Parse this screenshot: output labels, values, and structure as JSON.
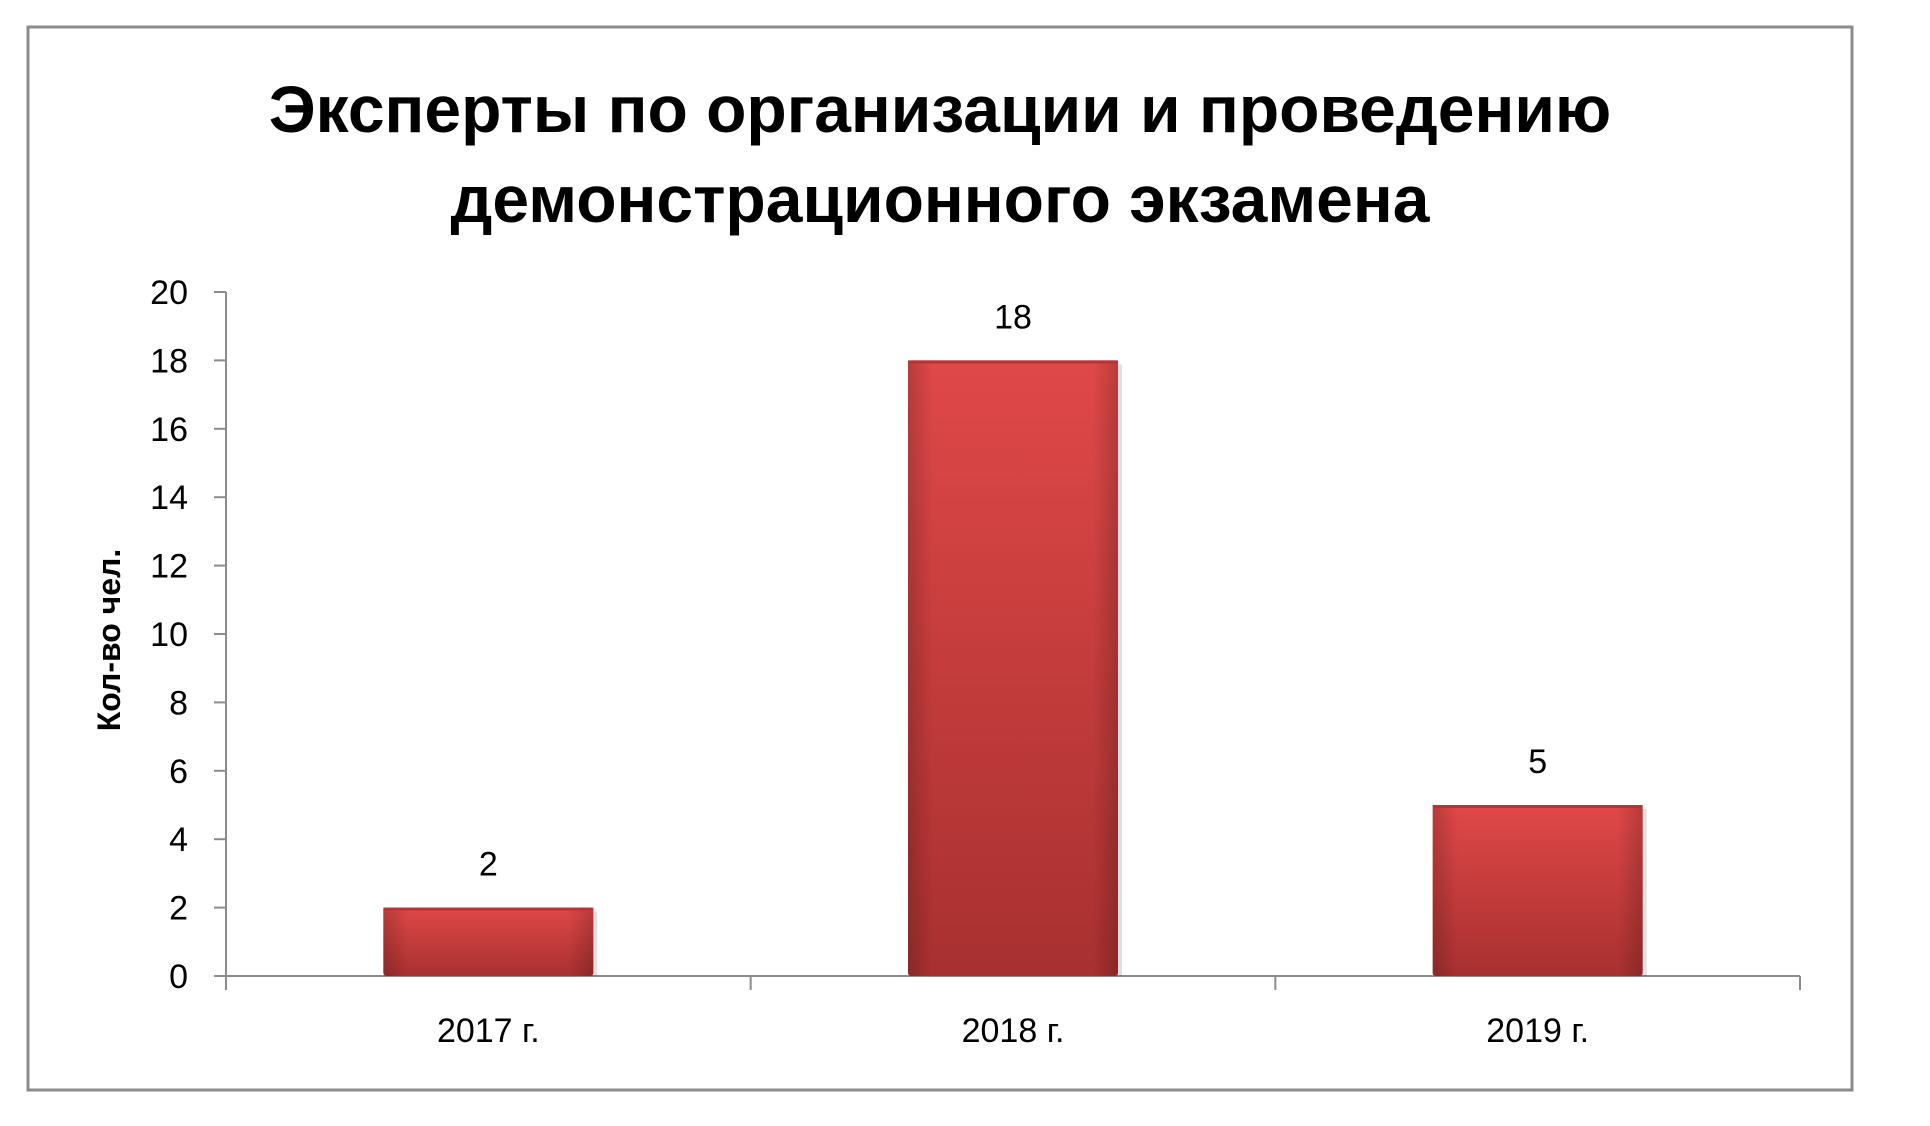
{
  "chart_data": {
    "type": "bar",
    "title_lines": [
      "Эксперты по организации и проведению",
      "демонстрационного экзамена"
    ],
    "xlabel": "",
    "ylabel": "Кол-во чел.",
    "categories": [
      "2017 г.",
      "2018 г.",
      "2019 г."
    ],
    "values": [
      2,
      18,
      5
    ],
    "data_labels": [
      "2",
      "18",
      "5"
    ],
    "ylim": [
      0,
      20
    ],
    "y_ticks": [
      "0",
      "2",
      "4",
      "6",
      "8",
      "10",
      "12",
      "14",
      "16",
      "18",
      "20"
    ],
    "grid": false,
    "legend": "none",
    "bar_color": "#c93a3a",
    "bar_color_light": "#e04848",
    "bar_color_dark": "#a83030"
  }
}
